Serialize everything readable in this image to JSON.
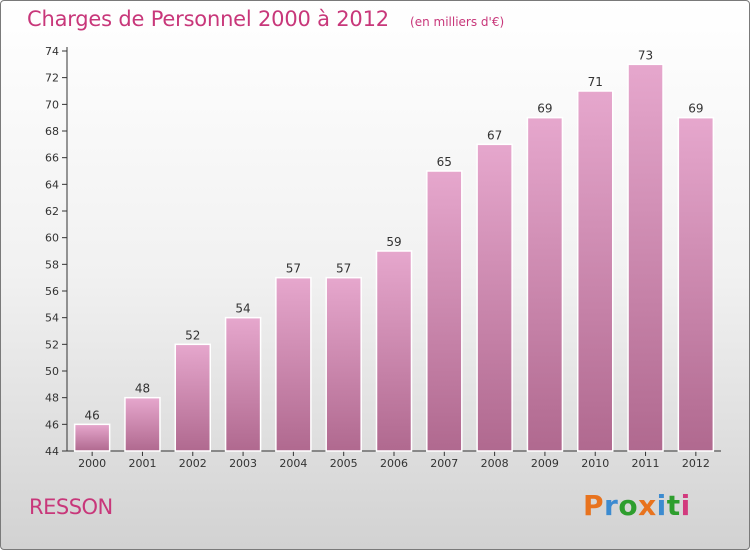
{
  "header": {
    "title": "Charges de Personnel 2000 à 2012",
    "subtitle": "(en milliers d'€)"
  },
  "footer": {
    "place": "RESSON",
    "brand": "Proxiti"
  },
  "colors": {
    "title": "#c8377a",
    "bar_top": "#e6a7cd",
    "bar_bottom": "#b0698f",
    "axis": "#333333",
    "brand_letters": [
      "#e8731e",
      "#3c8bd0",
      "#2e9e2e",
      "#e8731e",
      "#3c8bd0",
      "#2e9e2e",
      "#d23a7e"
    ]
  },
  "chart_data": {
    "type": "bar",
    "title": "Charges de Personnel 2000 à 2012",
    "subtitle": "(en milliers d'€)",
    "xlabel": "",
    "ylabel": "",
    "categories": [
      "2000",
      "2001",
      "2002",
      "2003",
      "2004",
      "2005",
      "2006",
      "2007",
      "2008",
      "2009",
      "2010",
      "2011",
      "2012"
    ],
    "values": [
      46,
      48,
      52,
      54,
      57,
      57,
      59,
      65,
      67,
      69,
      71,
      73,
      69
    ],
    "ylim": [
      44,
      74
    ],
    "yticks": [
      44,
      46,
      48,
      50,
      52,
      54,
      56,
      58,
      60,
      62,
      64,
      66,
      68,
      70,
      72,
      74
    ],
    "grid": false,
    "legend": "none"
  }
}
